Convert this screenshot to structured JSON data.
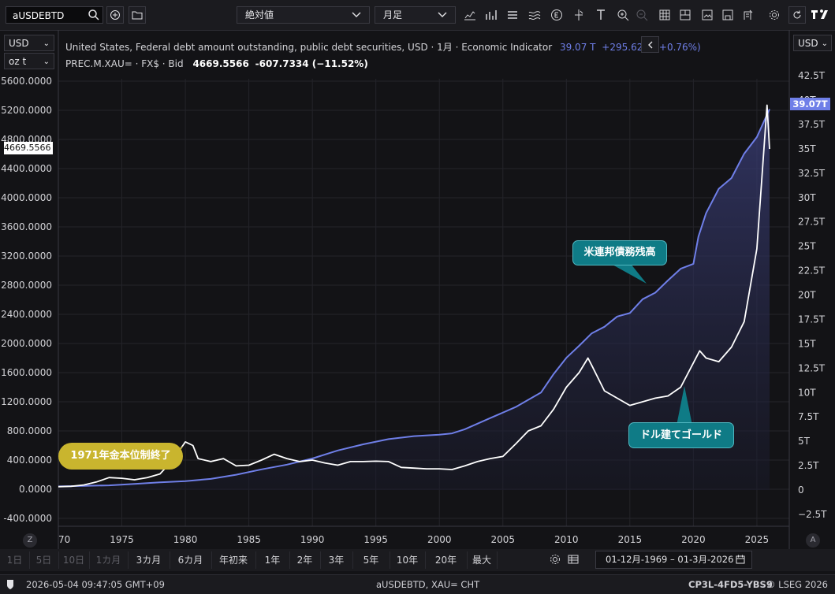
{
  "toolbar": {
    "symbol_input": "aUSDEBTD",
    "mode_select": "絶対値",
    "interval_select": "月足"
  },
  "axis_units": {
    "left_currency": "USD",
    "left_unit": "oz t",
    "right_currency": "USD"
  },
  "legend": {
    "line1": "United States, Federal debt amount outstanding, public debt securities, USD · 1月 · Economic Indicator",
    "line1_value": "39.07 T",
    "line1_change": "+295.62 B (+0.76%)",
    "line2_name": "PREC.M.XAU= · FX$ · Bid",
    "line2_value": "4669.5566",
    "line2_change": "-607.7334 (−11.52%)"
  },
  "price_tags": {
    "left": "4669.5566",
    "right": "39.07T"
  },
  "annotations": {
    "debt": "米連邦債務残高",
    "gold": "ドル建てゴールド",
    "end_of_gold": "1971年金本位制終了"
  },
  "periods": [
    "1日",
    "5日",
    "10日",
    "1カ月",
    "3カ月",
    "6カ月",
    "年初来",
    "1年",
    "2年",
    "3年",
    "5年",
    "10年",
    "20年",
    "最大"
  ],
  "date_range": "01-12月-1969 – 01-3月-2026",
  "status": {
    "timestamp": "2026-05-04 09:47:05 GMT+09",
    "center": "aUSDEBTD, XAU= CHT",
    "code": "CP3L-4FD5-YBS9",
    "copyright": "© LSEG 2026"
  },
  "colors": {
    "debt_line": "#6f7fe8",
    "gold_line": "#ffffff",
    "callout_teal": "#0f7b86",
    "callout_gold": "#c9b52e",
    "background": "#131316"
  },
  "chart_data": {
    "type": "line",
    "x_ticks": [
      "70",
      "1975",
      "1980",
      "1985",
      "1990",
      "1995",
      "2000",
      "2005",
      "2010",
      "2015",
      "2020",
      "2025"
    ],
    "left_axis": {
      "ticks": [
        "5600.0000",
        "5200.0000",
        "4800.0000",
        "4400.0000",
        "4000.0000",
        "3600.0000",
        "3200.0000",
        "2800.0000",
        "2400.0000",
        "2000.0000",
        "1600.0000",
        "1200.0000",
        "800.0000",
        "400.0000",
        "0.0000",
        "-400.0000"
      ],
      "ylim": [
        -400,
        5600
      ]
    },
    "right_axis": {
      "ticks": [
        "42.5T",
        "40T",
        "37.5T",
        "35T",
        "32.5T",
        "30T",
        "27.5T",
        "25T",
        "22.5T",
        "20T",
        "17.5T",
        "15T",
        "12.5T",
        "10T",
        "7.5T",
        "5T",
        "2.5T",
        "0",
        "−2.5T"
      ],
      "ylim": [
        -2.5,
        42.5
      ]
    },
    "series": [
      {
        "name": "United States, Federal debt amount outstanding, public debt securities",
        "axis": "right",
        "x": [
          1970,
          1972,
          1974,
          1976,
          1978,
          1980,
          1982,
          1984,
          1986,
          1988,
          1990,
          1992,
          1994,
          1996,
          1998,
          2000,
          2001,
          2002,
          2004,
          2006,
          2008,
          2009,
          2010,
          2011,
          2012,
          2013,
          2014,
          2015,
          2016,
          2017,
          2018,
          2019,
          2020.0,
          2020.4,
          2021,
          2022,
          2023,
          2024,
          2025,
          2026
        ],
        "y": [
          0.37,
          0.43,
          0.48,
          0.62,
          0.78,
          0.91,
          1.14,
          1.57,
          2.12,
          2.6,
          3.23,
          4.06,
          4.69,
          5.22,
          5.53,
          5.67,
          5.81,
          6.23,
          7.38,
          8.51,
          10.0,
          11.9,
          13.56,
          14.79,
          16.07,
          16.74,
          17.79,
          18.15,
          19.57,
          20.24,
          21.5,
          22.7,
          23.2,
          26.0,
          28.4,
          30.9,
          32.0,
          34.5,
          36.2,
          39.07
        ]
      },
      {
        "name": "PREC.M.XAU= · FX$ · Bid",
        "axis": "left",
        "x": [
          1970,
          1971,
          1972,
          1973,
          1974,
          1975,
          1976,
          1977,
          1978,
          1979,
          1979.8,
          1980.0,
          1980.6,
          1981,
          1982,
          1983,
          1984,
          1985,
          1986,
          1987,
          1988,
          1989,
          1990,
          1991,
          1992,
          1993,
          1994,
          1995,
          1996,
          1997,
          1998,
          1999,
          2000,
          2001,
          2002,
          2003,
          2004,
          2005,
          2006,
          2007,
          2008,
          2009,
          2010,
          2011,
          2011.7,
          2012,
          2013,
          2014,
          2015,
          2016,
          2017,
          2018,
          2019,
          2020.5,
          2021,
          2022,
          2023,
          2024,
          2025,
          2025.8,
          2026
        ],
        "y": [
          35,
          40,
          58,
          100,
          160,
          150,
          130,
          160,
          210,
          400,
          600,
          650,
          600,
          420,
          380,
          420,
          320,
          330,
          400,
          480,
          420,
          380,
          400,
          360,
          330,
          380,
          380,
          385,
          380,
          300,
          290,
          280,
          280,
          270,
          320,
          380,
          420,
          450,
          620,
          800,
          870,
          1100,
          1400,
          1600,
          1800,
          1700,
          1350,
          1250,
          1150,
          1200,
          1250,
          1280,
          1400,
          1900,
          1800,
          1750,
          1950,
          2300,
          3300,
          5270,
          4669.56
        ]
      }
    ]
  }
}
